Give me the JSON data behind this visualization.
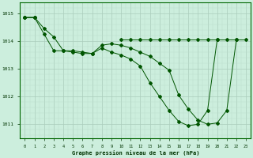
{
  "background_color": "#cceedd",
  "grid_color_major": "#aacccc",
  "grid_color_minor": "#bbdddd",
  "line_color": "#005500",
  "xlabel": "Graphe pression niveau de la mer (hPa)",
  "series_a": [
    1014.85,
    1014.85,
    1014.45,
    1014.15,
    1013.65,
    1013.65,
    1013.6,
    1013.55,
    1013.85,
    1013.9,
    1013.85,
    1013.75,
    1013.6,
    1013.45,
    1013.2,
    1012.95,
    1012.05,
    1011.55,
    1011.15,
    1011.0,
    1011.05,
    1011.5,
    1014.05,
    null
  ],
  "series_b": [
    1014.85,
    1014.85,
    1014.25,
    1013.65,
    1013.65,
    1013.6,
    1013.55,
    1013.55,
    1013.75,
    1013.6,
    1013.5,
    1013.35,
    1013.1,
    1012.5,
    1012.0,
    1011.5,
    1011.1,
    1010.95,
    1011.0,
    1011.5,
    1014.05,
    null,
    null,
    null
  ],
  "series_c": [
    1014.85,
    1014.85,
    null,
    null,
    null,
    null,
    null,
    null,
    null,
    null,
    1014.05,
    1014.05,
    1014.05,
    1014.05,
    1014.05,
    1014.05,
    1014.05,
    1014.05,
    1014.05,
    1014.05,
    1014.05,
    1014.05,
    1014.05,
    1014.05
  ],
  "hours": [
    0,
    1,
    2,
    3,
    4,
    5,
    6,
    7,
    8,
    9,
    10,
    11,
    12,
    13,
    14,
    15,
    16,
    17,
    18,
    19,
    20,
    21,
    22,
    23
  ],
  "ylim": [
    1010.5,
    1015.4
  ],
  "yticks": [
    1011,
    1012,
    1013,
    1014,
    1015
  ],
  "xlim": [
    -0.5,
    23.5
  ]
}
